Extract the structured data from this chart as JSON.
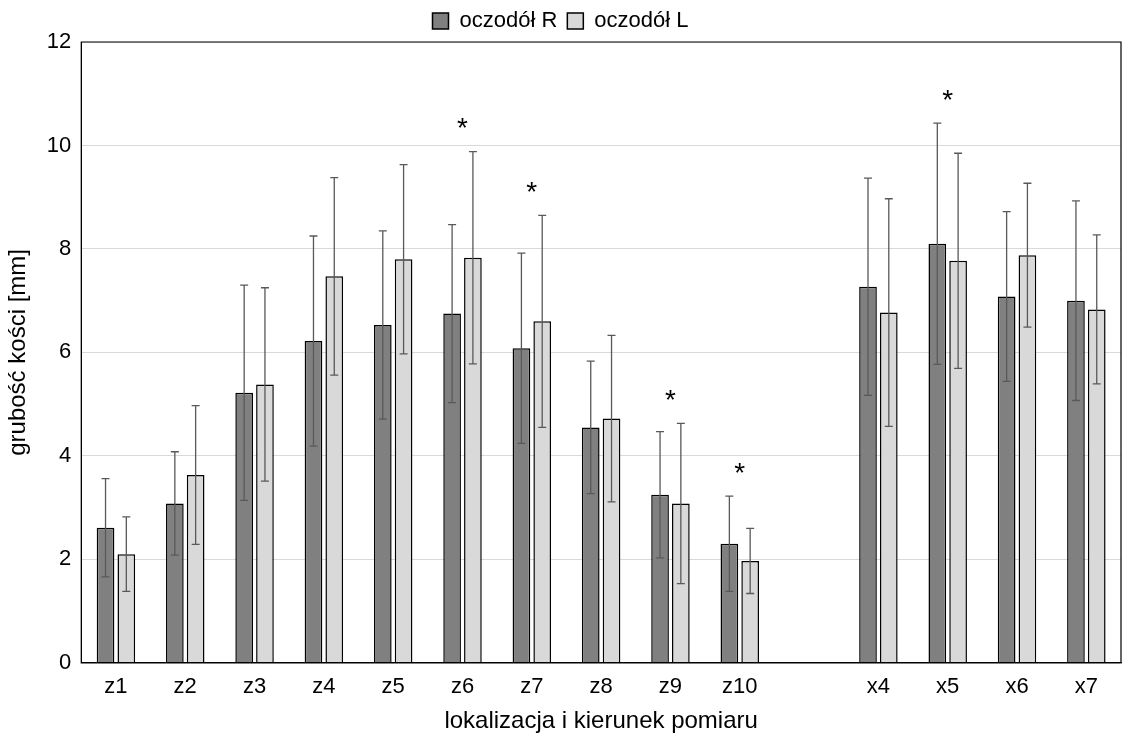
{
  "chart_data": {
    "type": "bar",
    "xlabel": "lokalizacja i kierunek pomiaru",
    "ylabel": "grubość kości [mm]",
    "categories": [
      "z1",
      "z2",
      "z3",
      "z4",
      "z5",
      "z6",
      "z7",
      "z8",
      "z9",
      "z10",
      null,
      "x4",
      "x5",
      "x6",
      "x7"
    ],
    "series": [
      {
        "name": "oczodół R",
        "color": "#808080",
        "values": [
          2.61,
          3.08,
          5.22,
          6.22,
          6.53,
          6.75,
          6.08,
          4.55,
          3.25,
          2.3,
          null,
          7.27,
          8.1,
          7.08,
          7.0
        ],
        "errors": [
          0.95,
          1.0,
          2.08,
          2.03,
          1.82,
          1.72,
          1.84,
          1.28,
          1.22,
          0.92,
          null,
          2.1,
          2.33,
          1.64,
          1.93
        ]
      },
      {
        "name": "oczodół L",
        "color": "#d9d9d9",
        "values": [
          2.1,
          3.63,
          5.38,
          7.47,
          7.8,
          7.83,
          6.6,
          4.72,
          3.08,
          1.97,
          null,
          6.77,
          7.77,
          7.88,
          6.83
        ],
        "errors": [
          0.72,
          1.34,
          1.87,
          1.91,
          1.83,
          2.05,
          2.05,
          1.61,
          1.55,
          0.63,
          null,
          2.2,
          2.08,
          1.39,
          1.44
        ]
      }
    ],
    "ylim": [
      0,
      12
    ],
    "yticks": [
      0,
      2,
      4,
      6,
      8,
      10,
      12
    ],
    "grid": "y",
    "legend": "top",
    "annotations": [
      "*",
      "*",
      "*",
      "*",
      "*"
    ]
  }
}
